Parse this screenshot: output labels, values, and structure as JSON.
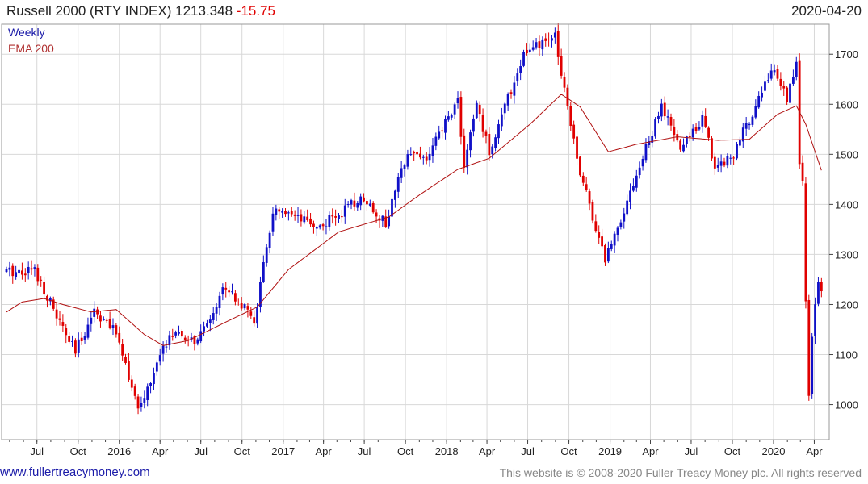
{
  "header": {
    "name": "Russell 2000 (RTY INDEX)",
    "last": "1213.348",
    "change": "-15.75",
    "date": "2020-04-20"
  },
  "legend": {
    "series1": "Weekly",
    "series2": "EMA 200"
  },
  "footer": {
    "left": "www.fullertreacymoney.com",
    "right": "This website is © 2008-2020 Fuller Treacy Money plc. All rights reserved"
  },
  "colors": {
    "up": "#1010c8",
    "down": "#e00000",
    "ema": "#b01010",
    "grid": "#d8d8d8",
    "axis": "#444444"
  },
  "chart_data": {
    "type": "candlestick",
    "title": "Russell 2000 (RTY INDEX)",
    "ylim": [
      930,
      1760
    ],
    "y_ticks": [
      1000,
      1100,
      1200,
      1300,
      1400,
      1500,
      1600,
      1700
    ],
    "x_tick_labels": [
      "Jul",
      "Oct",
      "2016",
      "Apr",
      "Jul",
      "Oct",
      "2017",
      "Apr",
      "Jul",
      "Oct",
      "2018",
      "Apr",
      "Jul",
      "Oct",
      "2019",
      "Apr",
      "Jul",
      "Oct",
      "2020",
      "Apr"
    ],
    "x_range": [
      "2015-04-24",
      "2020-04-20"
    ],
    "grid": true,
    "legend_position": "top-left",
    "weekly_close_keypoints": [
      [
        "2015-04-24",
        1265
      ],
      [
        "2015-06-26",
        1270
      ],
      [
        "2015-08-28",
        1150
      ],
      [
        "2015-09-25",
        1105
      ],
      [
        "2015-11-06",
        1190
      ],
      [
        "2015-12-31",
        1135
      ],
      [
        "2016-02-12",
        985
      ],
      [
        "2016-04-22",
        1140
      ],
      [
        "2016-06-24",
        1125
      ],
      [
        "2016-08-26",
        1240
      ],
      [
        "2016-10-28",
        1165
      ],
      [
        "2016-12-09",
        1385
      ],
      [
        "2017-03-24",
        1355
      ],
      [
        "2017-06-30",
        1415
      ],
      [
        "2017-08-18",
        1360
      ],
      [
        "2017-10-06",
        1510
      ],
      [
        "2017-11-17",
        1490
      ],
      [
        "2018-01-26",
        1610
      ],
      [
        "2018-02-09",
        1475
      ],
      [
        "2018-03-09",
        1600
      ],
      [
        "2018-04-06",
        1505
      ],
      [
        "2018-06-22",
        1700
      ],
      [
        "2018-08-31",
        1735
      ],
      [
        "2018-10-26",
        1465
      ],
      [
        "2018-12-21",
        1290
      ],
      [
        "2019-04-26",
        1595
      ],
      [
        "2019-06-07",
        1510
      ],
      [
        "2019-07-26",
        1575
      ],
      [
        "2019-08-23",
        1475
      ],
      [
        "2019-10-04",
        1500
      ],
      [
        "2019-12-27",
        1670
      ],
      [
        "2020-01-31",
        1615
      ],
      [
        "2020-02-21",
        1680
      ],
      [
        "2020-02-28",
        1475
      ],
      [
        "2020-03-06",
        1450
      ],
      [
        "2020-03-13",
        1210
      ],
      [
        "2020-03-20",
        1015
      ],
      [
        "2020-03-27",
        1130
      ],
      [
        "2020-04-09",
        1245
      ],
      [
        "2020-04-20",
        1213
      ]
    ],
    "ema200_keypoints": [
      [
        "2015-04-24",
        1185
      ],
      [
        "2015-05-29",
        1205
      ],
      [
        "2015-07-17",
        1212
      ],
      [
        "2015-08-28",
        1200
      ],
      [
        "2015-10-30",
        1185
      ],
      [
        "2015-12-25",
        1190
      ],
      [
        "2016-02-26",
        1140
      ],
      [
        "2016-04-08",
        1118
      ],
      [
        "2016-06-03",
        1128
      ],
      [
        "2016-08-26",
        1165
      ],
      [
        "2016-11-04",
        1195
      ],
      [
        "2017-01-13",
        1270
      ],
      [
        "2017-05-05",
        1345
      ],
      [
        "2017-08-25",
        1375
      ],
      [
        "2017-11-03",
        1420
      ],
      [
        "2018-01-26",
        1470
      ],
      [
        "2018-04-06",
        1492
      ],
      [
        "2018-07-06",
        1560
      ],
      [
        "2018-09-14",
        1620
      ],
      [
        "2018-10-26",
        1595
      ],
      [
        "2018-12-28",
        1505
      ],
      [
        "2019-03-01",
        1520
      ],
      [
        "2019-05-31",
        1535
      ],
      [
        "2019-08-30",
        1528
      ],
      [
        "2019-11-08",
        1530
      ],
      [
        "2020-01-10",
        1580
      ],
      [
        "2020-02-21",
        1597
      ],
      [
        "2020-03-13",
        1560
      ],
      [
        "2020-04-20",
        1460
      ]
    ]
  }
}
